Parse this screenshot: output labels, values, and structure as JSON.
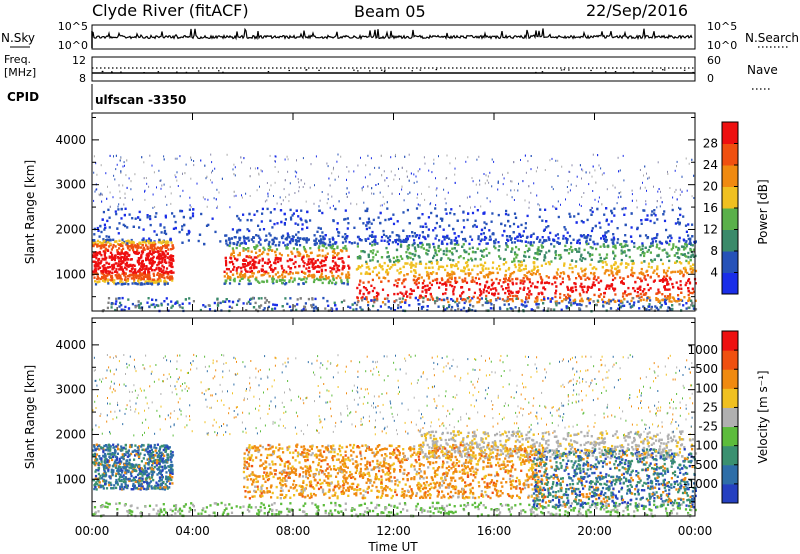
{
  "chart_data": {
    "type": "heatmap",
    "header": {
      "station": "Clyde River (fitACF)",
      "beam": "Beam 05",
      "date": "22/Sep/2016"
    },
    "noise_panel": {
      "left_label": "N.Sky",
      "left_ticks": [
        "10^5",
        "10^0"
      ],
      "right_ticks": [
        "10^5",
        "10^0"
      ],
      "right_label": "N.Search"
    },
    "freq_panel": {
      "left_label": "Freq.",
      "left_unit": "[MHz]",
      "left_ticks": [
        "12",
        "8"
      ],
      "right_ticks": [
        "60",
        "0"
      ],
      "right_label": "Nave"
    },
    "cpid": {
      "label": "CPID",
      "value": "ulfscan -3350"
    },
    "x_axis": {
      "title": "Time UT",
      "range_hours": [
        0,
        24
      ],
      "tick_labels": [
        "00:00",
        "04:00",
        "08:00",
        "12:00",
        "16:00",
        "20:00",
        "00:00"
      ]
    },
    "y_axis": {
      "title": "Slant Range [km]",
      "range_km": [
        180,
        4600
      ],
      "tick_labels": [
        "1000",
        "2000",
        "3000",
        "4000"
      ]
    },
    "power_panel": {
      "colorbar_title": "Power [dB]",
      "colorbar_ticks": [
        "28",
        "24",
        "20",
        "16",
        "12",
        "8",
        "4"
      ],
      "colors": [
        "#1a2ee8",
        "#2652b8",
        "#3a8a6a",
        "#5ab04a",
        "#f0c020",
        "#f08a10",
        "#f05010",
        "#ee1010"
      ]
    },
    "velocity_panel": {
      "colorbar_title": "Velocity [m s⁻¹]",
      "colorbar_ticks": [
        "1000",
        "500",
        "100",
        "25",
        "-25",
        "-100",
        "-500",
        "-1000"
      ],
      "colors": [
        "#2540c0",
        "#2e6ea8",
        "#3a9070",
        "#5cbc3c",
        "#b0b0b0",
        "#f0c020",
        "#f08a10",
        "#f05010",
        "#ee1010"
      ]
    }
  }
}
